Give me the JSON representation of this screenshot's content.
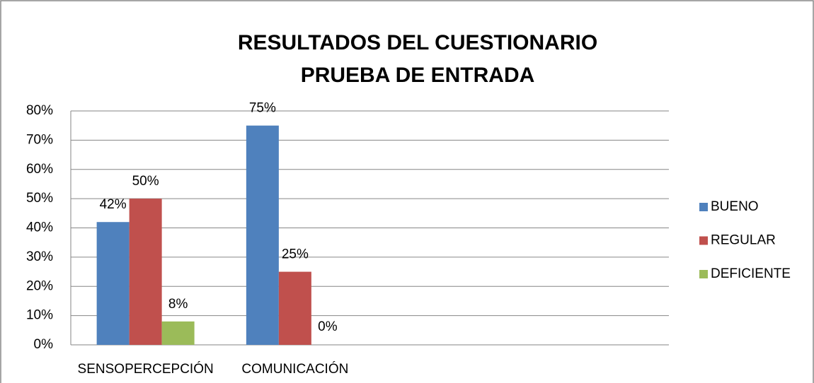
{
  "chart_data": {
    "type": "bar",
    "title": "RESULTADOS DEL CUESTIONARIO",
    "subtitle": "PRUEBA DE ENTRADA",
    "categories": [
      "SENSOPERCEPCIÓN",
      "COMUNICACIÓN",
      null,
      null
    ],
    "series": [
      {
        "name": "BUENO",
        "color": "#4f81bd",
        "values": [
          42,
          75,
          null,
          null
        ],
        "value_labels": [
          "42%",
          "75%",
          null,
          null
        ]
      },
      {
        "name": "REGULAR",
        "color": "#c0504d",
        "values": [
          50,
          25,
          null,
          null
        ],
        "value_labels": [
          "50%",
          "25%",
          null,
          null
        ]
      },
      {
        "name": "DEFICIENTE",
        "color": "#9bbb59",
        "values": [
          8,
          0,
          null,
          null
        ],
        "value_labels": [
          "8%",
          "0%",
          null,
          null
        ]
      }
    ],
    "ylim": [
      0,
      80
    ],
    "yticks": [
      {
        "value": 0,
        "label": "0%"
      },
      {
        "value": 10,
        "label": "10%"
      },
      {
        "value": 20,
        "label": "20%"
      },
      {
        "value": 30,
        "label": "30%"
      },
      {
        "value": 40,
        "label": "40%"
      },
      {
        "value": 50,
        "label": "50%"
      },
      {
        "value": 60,
        "label": "60%"
      },
      {
        "value": 70,
        "label": "70%"
      },
      {
        "value": 80,
        "label": "80%"
      }
    ],
    "grid": true,
    "legend": "right"
  }
}
